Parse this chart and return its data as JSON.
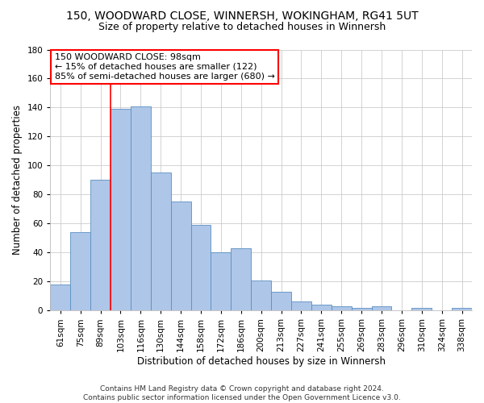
{
  "title1": "150, WOODWARD CLOSE, WINNERSH, WOKINGHAM, RG41 5UT",
  "title2": "Size of property relative to detached houses in Winnersh",
  "xlabel": "Distribution of detached houses by size in Winnersh",
  "ylabel": "Number of detached properties",
  "categories": [
    "61sqm",
    "75sqm",
    "89sqm",
    "103sqm",
    "116sqm",
    "130sqm",
    "144sqm",
    "158sqm",
    "172sqm",
    "186sqm",
    "200sqm",
    "213sqm",
    "227sqm",
    "241sqm",
    "255sqm",
    "269sqm",
    "283sqm",
    "296sqm",
    "310sqm",
    "324sqm",
    "338sqm"
  ],
  "values": [
    18,
    54,
    90,
    139,
    141,
    95,
    75,
    59,
    40,
    43,
    21,
    13,
    6,
    4,
    3,
    2,
    3,
    0,
    2,
    0,
    2
  ],
  "bar_color": "#aec6e8",
  "bar_edge_color": "#5a8fc0",
  "vline_color": "red",
  "vline_xindex": 2.5,
  "annotation_text": "150 WOODWARD CLOSE: 98sqm\n← 15% of detached houses are smaller (122)\n85% of semi-detached houses are larger (680) →",
  "annotation_box_color": "white",
  "annotation_box_edge": "red",
  "ylim": [
    0,
    180
  ],
  "yticks": [
    0,
    20,
    40,
    60,
    80,
    100,
    120,
    140,
    160,
    180
  ],
  "footnote": "Contains HM Land Registry data © Crown copyright and database right 2024.\nContains public sector information licensed under the Open Government Licence v3.0.",
  "bg_color": "#ffffff",
  "plot_bg_color": "#ffffff",
  "grid_color": "#cccccc",
  "title1_fontsize": 10,
  "title2_fontsize": 9,
  "xlabel_fontsize": 8.5,
  "ylabel_fontsize": 8.5,
  "tick_fontsize": 7.5,
  "annotation_fontsize": 8,
  "footnote_fontsize": 6.5
}
